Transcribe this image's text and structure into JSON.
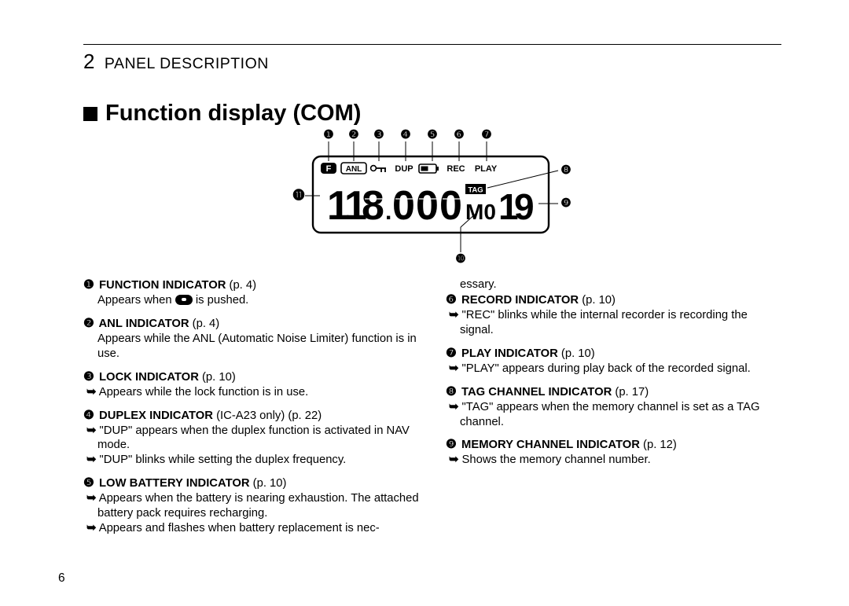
{
  "header": {
    "section_number": "2",
    "section_title": "PANEL DESCRIPTION"
  },
  "title": "Function display (COM)",
  "page_number": "6",
  "diagram": {
    "top_markers": [
      "❶",
      "❷",
      "❸",
      "❹",
      "❺",
      "❻",
      "❼"
    ],
    "right_markers": [
      "❽",
      "❾"
    ],
    "left_marker": "⓫",
    "bottom_marker": "❿",
    "top_row_labels": {
      "f": "F",
      "anl": "ANL",
      "dup": "DUP",
      "rec": "REC",
      "play": "PLAY"
    },
    "lcd_digits": "118.000",
    "mo_label": "M0",
    "tag_label": "TAG",
    "channel": "19"
  },
  "items_left": [
    {
      "num": "❶",
      "title": "FUNCTION INDICATOR",
      "pageref": "p. 4",
      "lines": [
        {
          "kind": "sub",
          "text_pre": "Appears when ",
          "badge": true,
          "text_post": " is pushed."
        }
      ]
    },
    {
      "num": "❷",
      "title": "ANL INDICATOR",
      "pageref": "p. 4",
      "lines": [
        {
          "kind": "sub",
          "text": "Appears while the ANL (Automatic Noise Limiter) function is in use."
        }
      ]
    },
    {
      "num": "❸",
      "title": "LOCK INDICATOR",
      "pageref": "p. 10",
      "lines": [
        {
          "kind": "arrow",
          "text": "Appears while the lock function is in use."
        }
      ]
    },
    {
      "num": "❹",
      "title": "DUPLEX INDICATOR",
      "title_suffix": " (IC-A23 only)",
      "pageref": "p. 22",
      "lines": [
        {
          "kind": "arrow",
          "text": "\"DUP\" appears when the duplex function is activated in NAV mode."
        },
        {
          "kind": "arrow",
          "text": "\"DUP\" blinks while setting the duplex frequency."
        }
      ]
    },
    {
      "num": "❺",
      "title": "LOW BATTERY INDICATOR",
      "pageref": "p. 10",
      "lines": [
        {
          "kind": "arrow",
          "text": "Appears when the battery is nearing exhaustion. The attached battery pack requires recharging."
        },
        {
          "kind": "arrow",
          "text": "Appears and flashes when battery replacement is nec-"
        }
      ]
    }
  ],
  "items_right_pre": [
    {
      "kind": "sub",
      "text": "essary."
    }
  ],
  "items_right": [
    {
      "num": "❻",
      "title": "RECORD INDICATOR",
      "pageref": "p. 10",
      "lines": [
        {
          "kind": "arrow",
          "text": "\"REC\" blinks while the internal recorder is recording the signal."
        }
      ]
    },
    {
      "num": "❼",
      "title": "PLAY INDICATOR",
      "pageref": "p. 10",
      "lines": [
        {
          "kind": "arrow",
          "text": "\"PLAY\" appears during play back of the recorded signal."
        }
      ]
    },
    {
      "num": "❽",
      "title": "TAG CHANNEL INDICATOR",
      "pageref": "p. 17",
      "lines": [
        {
          "kind": "arrow",
          "text": "\"TAG\" appears when the memory channel is set as a TAG channel."
        }
      ]
    },
    {
      "num": "❾",
      "title": "MEMORY CHANNEL INDICATOR",
      "pageref": "p. 12",
      "lines": [
        {
          "kind": "arrow",
          "text": "Shows the memory channel number."
        }
      ]
    }
  ]
}
